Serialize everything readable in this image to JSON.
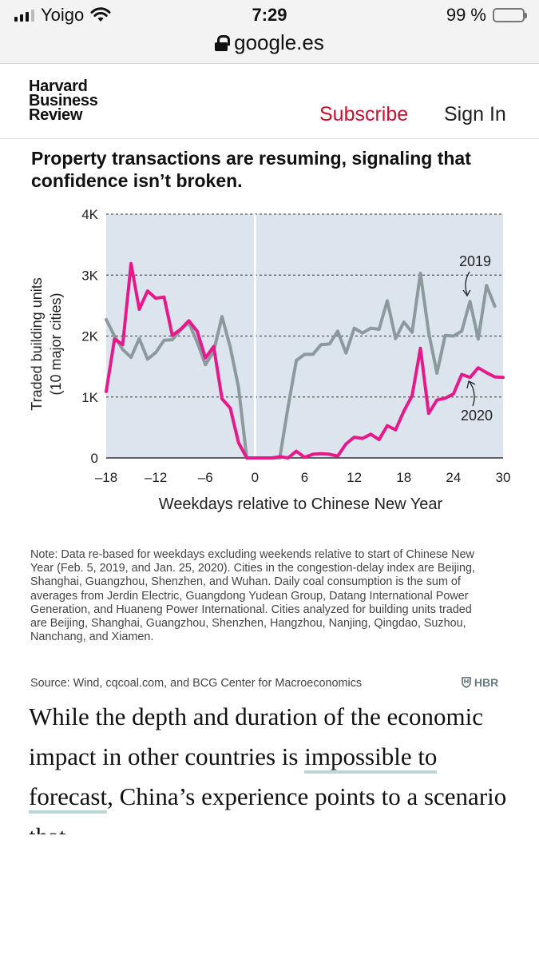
{
  "status_bar": {
    "carrier": "Yoigo",
    "time": "7:29",
    "battery": "99 %",
    "battery_level": 0.99,
    "url": "google.es",
    "icons": [
      "signal-icon",
      "wifi-icon",
      "lock-icon",
      "battery-icon"
    ]
  },
  "header": {
    "logo_lines": [
      "Harvard",
      "Business",
      "Review"
    ],
    "subscribe_label": "Subscribe",
    "signin_label": "Sign In",
    "subscribe_color": "#c8102e"
  },
  "chart_title": "Property transactions are resuming, signaling that confidence isn’t broken.",
  "chart_data": {
    "type": "line",
    "title": "Property transactions are resuming, signaling that confidence isn’t broken.",
    "xlabel": "Weekdays relative to Chinese New Year",
    "ylabel": "Traded building units (10 major cities)",
    "xlim": [
      -18,
      30
    ],
    "ylim": [
      0,
      4000
    ],
    "x_ticks": [
      -18,
      -12,
      -6,
      0,
      6,
      12,
      18,
      24,
      30
    ],
    "x_tick_labels": [
      "–18",
      "–12",
      "–6",
      "0",
      "6",
      "12",
      "18",
      "24",
      "30"
    ],
    "y_ticks": [
      0,
      1000,
      2000,
      3000,
      4000
    ],
    "y_tick_labels": [
      "0",
      "1K",
      "2K",
      "3K",
      "4K"
    ],
    "grid": "horizontal dashed",
    "background": "#dce5ee",
    "series": [
      {
        "name": "2019",
        "color": "#8c9a9e",
        "points": [
          [
            -18,
            2270
          ],
          [
            -17,
            2000
          ],
          [
            -16,
            1780
          ],
          [
            -15,
            1650
          ],
          [
            -14,
            1960
          ],
          [
            -13,
            1620
          ],
          [
            -12,
            1730
          ],
          [
            -11,
            1930
          ],
          [
            -10,
            1940
          ],
          [
            -9,
            2100
          ],
          [
            -8,
            2220
          ],
          [
            -7,
            1900
          ],
          [
            -6,
            1530
          ],
          [
            -5,
            1750
          ],
          [
            -4,
            2320
          ],
          [
            -3,
            1820
          ],
          [
            -2,
            1160
          ],
          [
            -1,
            0
          ],
          [
            3,
            0
          ],
          [
            4,
            840
          ],
          [
            5,
            1600
          ],
          [
            6,
            1700
          ],
          [
            7,
            1700
          ],
          [
            8,
            1860
          ],
          [
            9,
            1870
          ],
          [
            10,
            2080
          ],
          [
            11,
            1720
          ],
          [
            12,
            2130
          ],
          [
            13,
            2050
          ],
          [
            14,
            2130
          ],
          [
            15,
            2110
          ],
          [
            16,
            2580
          ],
          [
            17,
            1960
          ],
          [
            18,
            2230
          ],
          [
            19,
            2060
          ],
          [
            20,
            3030
          ],
          [
            21,
            2060
          ],
          [
            22,
            1390
          ],
          [
            23,
            2010
          ],
          [
            24,
            2000
          ],
          [
            25,
            2080
          ],
          [
            26,
            2570
          ],
          [
            27,
            1950
          ],
          [
            28,
            2830
          ],
          [
            29,
            2490
          ]
        ]
      },
      {
        "name": "2020",
        "color": "#e6198a",
        "points": [
          [
            -18,
            1090
          ],
          [
            -17,
            1950
          ],
          [
            -16,
            1860
          ],
          [
            -15,
            3190
          ],
          [
            -14,
            2440
          ],
          [
            -13,
            2740
          ],
          [
            -12,
            2620
          ],
          [
            -11,
            2640
          ],
          [
            -10,
            2010
          ],
          [
            -9,
            2110
          ],
          [
            -8,
            2250
          ],
          [
            -7,
            2080
          ],
          [
            -6,
            1640
          ],
          [
            -5,
            1830
          ],
          [
            -4,
            970
          ],
          [
            -3,
            820
          ],
          [
            -2,
            250
          ],
          [
            -1,
            0
          ],
          [
            0,
            0
          ],
          [
            1,
            0
          ],
          [
            2,
            0
          ],
          [
            3,
            20
          ],
          [
            4,
            0
          ],
          [
            5,
            110
          ],
          [
            6,
            10
          ],
          [
            7,
            60
          ],
          [
            8,
            70
          ],
          [
            9,
            60
          ],
          [
            10,
            30
          ],
          [
            11,
            230
          ],
          [
            12,
            340
          ],
          [
            13,
            320
          ],
          [
            14,
            390
          ],
          [
            15,
            300
          ],
          [
            16,
            530
          ],
          [
            17,
            460
          ],
          [
            18,
            770
          ],
          [
            19,
            1020
          ],
          [
            20,
            1800
          ],
          [
            21,
            730
          ],
          [
            22,
            950
          ],
          [
            23,
            980
          ],
          [
            24,
            1050
          ],
          [
            25,
            1370
          ],
          [
            26,
            1320
          ],
          [
            27,
            1480
          ],
          [
            28,
            1400
          ],
          [
            29,
            1330
          ],
          [
            30,
            1320
          ]
        ]
      }
    ],
    "annotations": [
      {
        "text": "2019",
        "series": "2019"
      },
      {
        "text": "2020",
        "series": "2020"
      }
    ]
  },
  "note": "Note: Data re-based for weekdays excluding weekends relative to start of Chinese New Year (Feb. 5, 2019, and Jan. 25, 2020). Cities in the congestion-delay index are Beijing, Shanghai, Guangzhou, Shenzhen, and Wuhan. Daily coal consumption is the sum of averages from Jerdin Electric, Guangdong Yudean Group, Datang International Power Generation, and Huaneng Power International. Cities analyzed for building units traded are Beijing, Shanghai, Guangzhou, Shenzhen, Hangzhou, Nanjing, Qingdao, Suzhou, Nanchang, and Xiamen.",
  "source": "Source: Wind, cqcoal.com, and BCG Center for Macroeconomics",
  "hbr_mark": "HBR",
  "article": {
    "before_link": "While the depth and duration of the economic impact in other countries is ",
    "link_text": "impossible to forecast",
    "after_link": ", China’s experience points to a scenario that"
  }
}
